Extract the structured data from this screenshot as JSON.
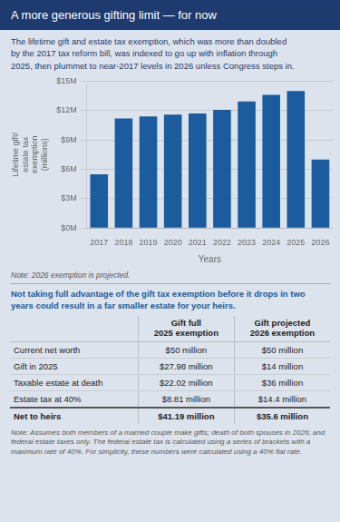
{
  "chart_data": [
    {
      "type": "bar",
      "title": "A more generous gifting limit — for now",
      "subtitle": "The lifetime gift and estate tax exemption, which was more than doubled\nby the 2017 tax reform bill, was indexed to go up with inflation through\n2025, then plummet to near-2017 levels in 2026 unless Congress steps in.",
      "categories": [
        "2017",
        "2018",
        "2019",
        "2020",
        "2021",
        "2022",
        "2023",
        "2024",
        "2025",
        "2026"
      ],
      "values": [
        5.49,
        11.18,
        11.4,
        11.58,
        11.7,
        12.06,
        12.92,
        13.61,
        13.99,
        7.0
      ],
      "color": "#1a5c9e",
      "xlabel": "Years",
      "ylabel": "Lifetime gift/\nestate tax\nexemption\n(millions)",
      "ylim": [
        0,
        15
      ],
      "yticks": [
        {
          "value": 0,
          "label": "$0M"
        },
        {
          "value": 3,
          "label": "$3M"
        },
        {
          "value": 6,
          "label": "$6M"
        },
        {
          "value": 9,
          "label": "$9M"
        },
        {
          "value": 12,
          "label": "$12M"
        },
        {
          "value": 15,
          "label": "$15M"
        }
      ],
      "grid": true,
      "annotations": [
        "Note: 2026 exemption is projected."
      ]
    },
    {
      "type": "table",
      "title": "Not taking full advantage of the gift tax exemption before it drops in two\nyears could result in a far smaller estate for your heirs.",
      "categories": [
        "Current net worth",
        "Gift in 2025",
        "Taxable estate at death",
        "Estate tax at 40%",
        "Net to heirs"
      ],
      "series": [
        {
          "name": "Gift full\n2025 exemption",
          "values": [
            "$50 million",
            "$27.98 million",
            "$22.02 million",
            "$8.81 million",
            "$41.19 million"
          ]
        },
        {
          "name": "Gift projected\n2026 exemption",
          "values": [
            "$50 million",
            "$14 million",
            "$36 million",
            "$14.4 million",
            "$35.6 million"
          ]
        }
      ],
      "annotations": [
        "Note: Assumes both members of a married couple make gifts; death of both spouses in 2026; and federal estate taxes only. The federal estate tax is calculated using a series of brackets with a maximum rate of 40%. For simplicity, these numbers were calculated using a 40% flat rate."
      ]
    }
  ]
}
